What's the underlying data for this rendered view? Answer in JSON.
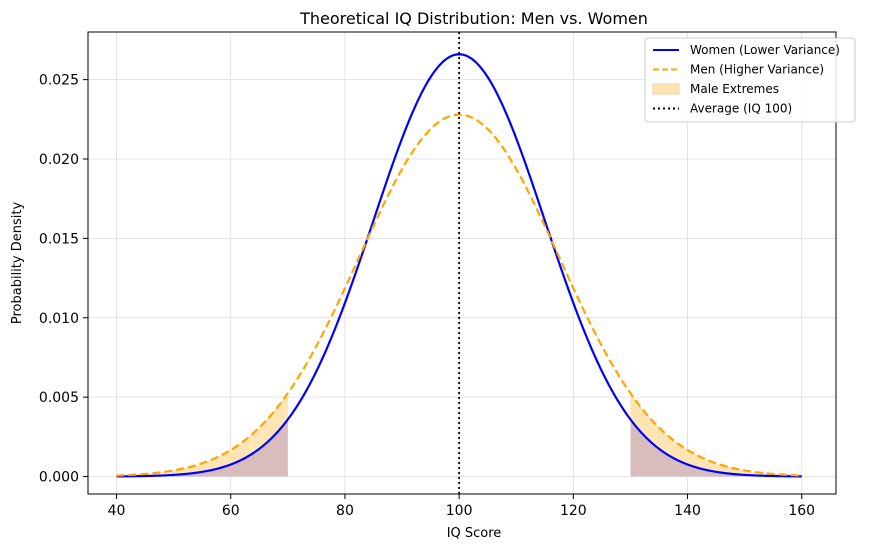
{
  "chart_data": {
    "type": "line",
    "title": "Theoretical IQ Distribution: Men vs. Women",
    "xlabel": "IQ Score",
    "ylabel": "Probability Density",
    "xlim": [
      35,
      166
    ],
    "ylim": [
      -0.0011,
      0.028
    ],
    "x_ticks": [
      40,
      60,
      80,
      100,
      120,
      140,
      160
    ],
    "x_tick_labels": [
      "40",
      "60",
      "80",
      "100",
      "120",
      "140",
      "160"
    ],
    "y_ticks": [
      0.0,
      0.005,
      0.01,
      0.015,
      0.02,
      0.025
    ],
    "y_tick_labels": [
      "0.000",
      "0.005",
      "0.010",
      "0.015",
      "0.020",
      "0.025"
    ],
    "grid": true,
    "legend_position": "top-right",
    "series": [
      {
        "name": "Women (Lower Variance)",
        "kind": "normal-curve",
        "mean": 100,
        "sd": 15,
        "x_range": [
          40,
          160
        ],
        "peak_density": 0.0266,
        "color": "#0000ff",
        "style": "solid"
      },
      {
        "name": "Men (Higher Variance)",
        "kind": "normal-curve",
        "mean": 100,
        "sd": 17.5,
        "x_range": [
          40,
          160
        ],
        "peak_density": 0.0228,
        "color": "#ffa500",
        "style": "dashed"
      }
    ],
    "shaded_regions": [
      {
        "name": "Male Extremes",
        "between": [
          "Women (Lower Variance)",
          "Men (Higher Variance)"
        ],
        "x_range": [
          40,
          70
        ],
        "color": "#ffe5b4"
      },
      {
        "name": "",
        "between": [
          "Women (Lower Variance)",
          "Men (Higher Variance)"
        ],
        "x_range": [
          130,
          160
        ],
        "color": "#ffe5b4"
      }
    ],
    "female_tail_fill_color": "#d9bcbc",
    "reference_lines": [
      {
        "name": "Average (IQ 100)",
        "orientation": "vertical",
        "x": 100,
        "color": "#000000",
        "style": "dotted"
      }
    ],
    "legend": [
      {
        "label": "Women (Lower Variance)",
        "symbol": "solid-line",
        "color": "#0000ff"
      },
      {
        "label": "Men (Higher Variance)",
        "symbol": "dashed-line",
        "color": "#ffa500"
      },
      {
        "label": "Male Extremes",
        "symbol": "patch",
        "color": "#ffe5b4"
      },
      {
        "label": "Average (IQ 100)",
        "symbol": "dotted-line",
        "color": "#000000"
      }
    ]
  }
}
